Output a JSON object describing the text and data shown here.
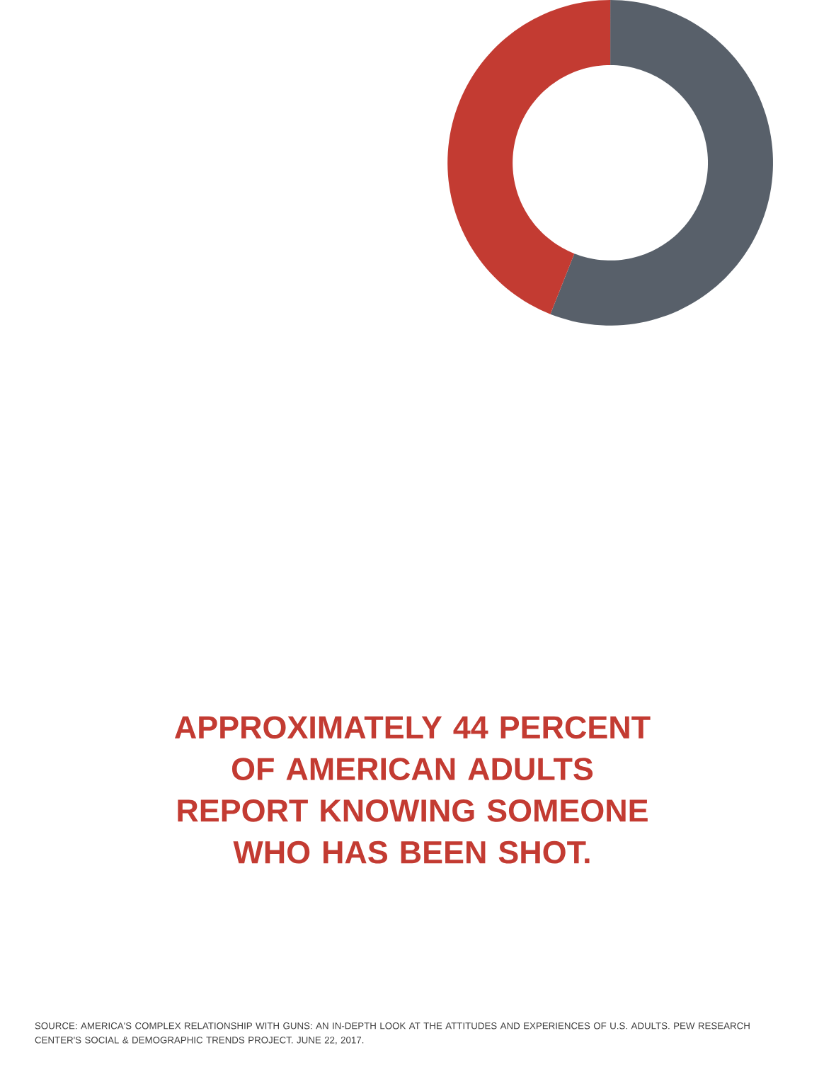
{
  "chart_data": {
    "type": "donut",
    "title": "APPROXIMATELY 44 PERCENT OF AMERICAN ADULTS REPORT KNOWING SOMEONE WHO HAS BEEN SHOT.",
    "categories": [
      null,
      null
    ],
    "values": [
      56,
      44
    ],
    "colors": [
      "#58606a",
      "#c33b32"
    ],
    "annotations": [
      "SOURCE: AMERICA'S COMPLEX RELATIONSHIP WITH GUNS: AN IN-DEPTH LOOK AT THE ATTITUDES AND EXPERIENCES OF U.S. ADULTS. PEW RESEARCH CENTER'S SOCIAL & DEMOGRAPHIC TRENDS PROJECT. JUNE 22, 2017."
    ]
  }
}
